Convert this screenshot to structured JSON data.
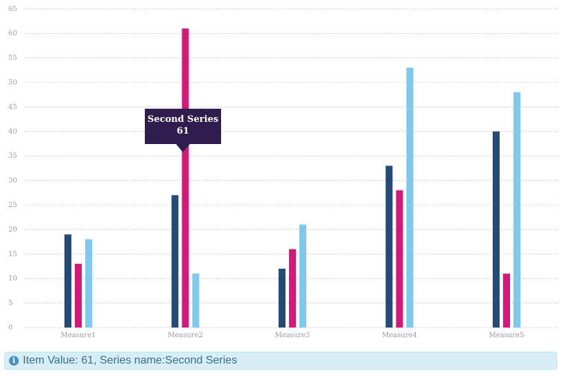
{
  "chart_data": {
    "type": "bar",
    "categories": [
      "Measure1",
      "Measure2",
      "Measure3",
      "Measure4",
      "Measure5"
    ],
    "series": [
      {
        "values": [
          19,
          27,
          12,
          33,
          40
        ],
        "color": "#254a7a"
      },
      {
        "name": "Second Series",
        "values": [
          13,
          61,
          16,
          28,
          11
        ],
        "color": "#d3197a"
      },
      {
        "values": [
          18,
          11,
          21,
          53,
          48
        ],
        "color": "#7ecaed"
      }
    ],
    "yticks": [
      0,
      5,
      10,
      15,
      20,
      25,
      30,
      35,
      40,
      45,
      50,
      55,
      60,
      65
    ],
    "ylim": [
      0,
      65
    ],
    "grid": true,
    "title": "",
    "xlabel": "",
    "ylabel": ""
  },
  "tooltip": {
    "series_name": "Second Series",
    "value": "61"
  },
  "info_bar": {
    "icon": "info-icon",
    "glyph": "i",
    "text": "Item Value: 61, Series name:Second Series"
  }
}
